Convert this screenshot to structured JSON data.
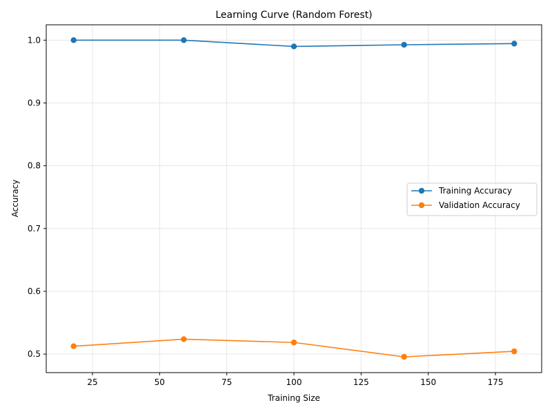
{
  "chart_data": {
    "type": "line",
    "title": "Learning Curve (Random Forest)",
    "xlabel": "Training Size",
    "ylabel": "Accuracy",
    "x": [
      18,
      59,
      100,
      141,
      182
    ],
    "xlim": [
      7.8,
      192.2
    ],
    "ylim": [
      0.4705,
      1.0245
    ],
    "xticks": [
      25,
      50,
      75,
      100,
      125,
      150,
      175
    ],
    "yticks": [
      0.5,
      0.6,
      0.7,
      0.8,
      0.9,
      1.0
    ],
    "xtick_labels": [
      "25",
      "50",
      "75",
      "100",
      "125",
      "150",
      "175"
    ],
    "ytick_labels": [
      "0.5",
      "0.6",
      "0.7",
      "0.8",
      "0.9",
      "1.0"
    ],
    "grid": true,
    "legend_position": "center-right",
    "series": [
      {
        "name": "Training Accuracy",
        "color": "#1f77b4",
        "marker": "circle",
        "values": [
          1.0,
          1.0,
          0.99,
          0.9927,
          0.9945
        ]
      },
      {
        "name": "Validation Accuracy",
        "color": "#ff7f0e",
        "marker": "circle",
        "values": [
          0.5125,
          0.5238,
          0.5185,
          0.4956,
          0.5044
        ]
      }
    ]
  }
}
